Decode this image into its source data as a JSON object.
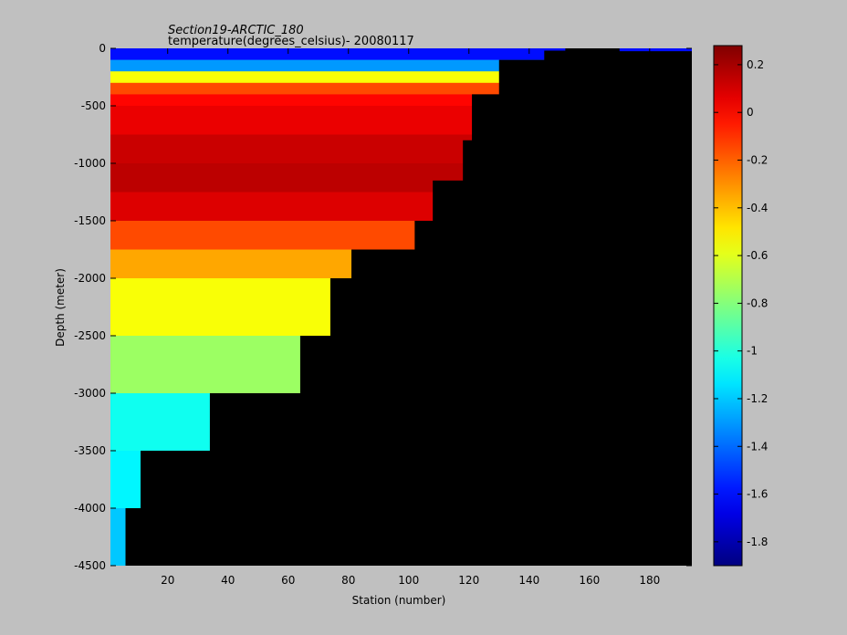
{
  "chart_data": {
    "type": "heatmap",
    "title": "Section19-ARCTIC_180",
    "subtitle": "temperature(degrees_celsius)- 20080117",
    "xlabel": "Station (number)",
    "ylabel": "Depth (meter)",
    "xlim": [
      1,
      194
    ],
    "ylim": [
      -4500,
      0
    ],
    "xticks": [
      20,
      40,
      60,
      80,
      100,
      120,
      140,
      160,
      180
    ],
    "yticks": [
      0,
      -500,
      -1000,
      -1500,
      -2000,
      -2500,
      -3000,
      -3500,
      -4000,
      -4500
    ],
    "colorbar": {
      "range": [
        -1.9,
        0.28
      ],
      "ticks": [
        0.2,
        0,
        -0.2,
        -0.4,
        -0.6,
        -0.8,
        -1,
        -1.2,
        -1.4,
        -1.6,
        -1.8
      ],
      "colormap": "jet"
    },
    "depth_levels": [
      0,
      -100,
      -200,
      -300,
      -400,
      -500,
      -750,
      -1000,
      -1250,
      -1500,
      -1750,
      -2000,
      -2500,
      -3000,
      -3500,
      -4000,
      -4500
    ],
    "profile_temperature": [
      -1.6,
      -1.3,
      -0.55,
      -0.15,
      0.0,
      0.05,
      0.12,
      0.15,
      0.08,
      -0.15,
      -0.35,
      -0.55,
      -0.75,
      -1.05,
      -1.1,
      -1.2,
      -1.3
    ],
    "bottom_depth": [
      {
        "station": 1,
        "depth": -4500
      },
      {
        "station": 6,
        "depth": -4000
      },
      {
        "station": 11,
        "depth": -3500
      },
      {
        "station": 34,
        "depth": -3000
      },
      {
        "station": 64,
        "depth": -2500
      },
      {
        "station": 74,
        "depth": -2000
      },
      {
        "station": 81,
        "depth": -1750
      },
      {
        "station": 102,
        "depth": -1500
      },
      {
        "station": 108,
        "depth": -1150
      },
      {
        "station": 118,
        "depth": -800
      },
      {
        "station": 121,
        "depth": -400
      },
      {
        "station": 130,
        "depth": -100
      },
      {
        "station": 145,
        "depth": -20
      },
      {
        "station": 152,
        "depth": 0
      },
      {
        "station": 170,
        "depth": -25
      },
      {
        "station": 194,
        "depth": -25
      }
    ],
    "no_data_color": "#000000",
    "background_color": "#c0c0c0"
  }
}
